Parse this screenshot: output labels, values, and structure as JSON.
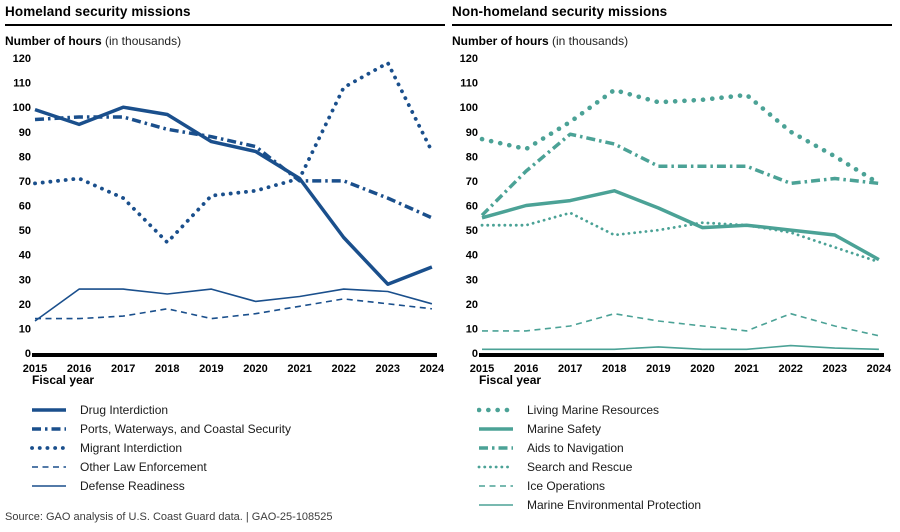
{
  "page": {
    "source": "Source: GAO analysis of U.S. Coast Guard data.  |  GAO-25-108525"
  },
  "chart_data": [
    {
      "type": "line",
      "title": "Homeland security missions",
      "ylabel": "Number of hours",
      "ylabel_note": "(in thousands)",
      "xlabel": "Fiscal year",
      "color": "#1a4f8c",
      "ylim": [
        0,
        120
      ],
      "ytick_step": 10,
      "grid": false,
      "legend_position": "bottom",
      "categories": [
        "2015",
        "2016",
        "2017",
        "2018",
        "2019",
        "2020",
        "2021",
        "2022",
        "2023",
        "2024"
      ],
      "series": [
        {
          "name": "Drug Interdiction",
          "style": "solid",
          "width": 3.5,
          "values": [
            99,
            93,
            100,
            97,
            86,
            82,
            71,
            47,
            28,
            35
          ]
        },
        {
          "name": "Ports, Waterways, and Coastal Security",
          "style": "dashdot",
          "width": 3.5,
          "values": [
            95,
            96,
            96,
            91,
            88,
            84,
            70,
            70,
            63,
            55
          ]
        },
        {
          "name": "Migrant Interdiction",
          "style": "dotted",
          "width": 3.8,
          "values": [
            69,
            71,
            63,
            45,
            64,
            66,
            71,
            108,
            118,
            82
          ]
        },
        {
          "name": "Other Law Enforcement",
          "style": "dashed",
          "width": 1.6,
          "values": [
            14,
            14,
            15,
            18,
            14,
            16,
            19,
            22,
            20,
            18
          ]
        },
        {
          "name": "Defense Readiness",
          "style": "solid",
          "width": 1.6,
          "values": [
            13,
            26,
            26,
            24,
            26,
            21,
            23,
            26,
            25,
            20
          ]
        }
      ]
    },
    {
      "type": "line",
      "title": "Non-homeland security missions",
      "ylabel": "Number of hours",
      "ylabel_note": "(in thousands)",
      "xlabel": "Fiscal year",
      "color": "#4ba296",
      "ylim": [
        0,
        120
      ],
      "ytick_step": 10,
      "grid": false,
      "legend_position": "bottom",
      "categories": [
        "2015",
        "2016",
        "2017",
        "2018",
        "2019",
        "2020",
        "2021",
        "2022",
        "2023",
        "2024"
      ],
      "series": [
        {
          "name": "Living Marine Resources",
          "style": "dotted",
          "width": 4.6,
          "values": [
            87,
            83,
            94,
            107,
            102,
            103,
            105,
            90,
            80,
            69
          ]
        },
        {
          "name": "Marine Safety",
          "style": "solid",
          "width": 3.5,
          "values": [
            55,
            60,
            62,
            66,
            59,
            51,
            52,
            50,
            48,
            38
          ]
        },
        {
          "name": "Aids to Navigation",
          "style": "dashdot",
          "width": 3.5,
          "values": [
            56,
            74,
            89,
            85,
            76,
            76,
            76,
            69,
            71,
            69
          ]
        },
        {
          "name": "Search and Rescue",
          "style": "dotted",
          "width": 2.8,
          "values": [
            52,
            52,
            57,
            48,
            50,
            53,
            52,
            49,
            43,
            37
          ]
        },
        {
          "name": "Ice Operations",
          "style": "dashed",
          "width": 1.6,
          "values": [
            9,
            9,
            11,
            16,
            13,
            11,
            9,
            16,
            11,
            7
          ]
        },
        {
          "name": "Marine Environmental Protection",
          "style": "solid",
          "width": 1.6,
          "values": [
            1.5,
            1.5,
            1.5,
            1.5,
            2.5,
            1.5,
            1.5,
            3,
            2,
            1.5
          ]
        }
      ]
    }
  ]
}
